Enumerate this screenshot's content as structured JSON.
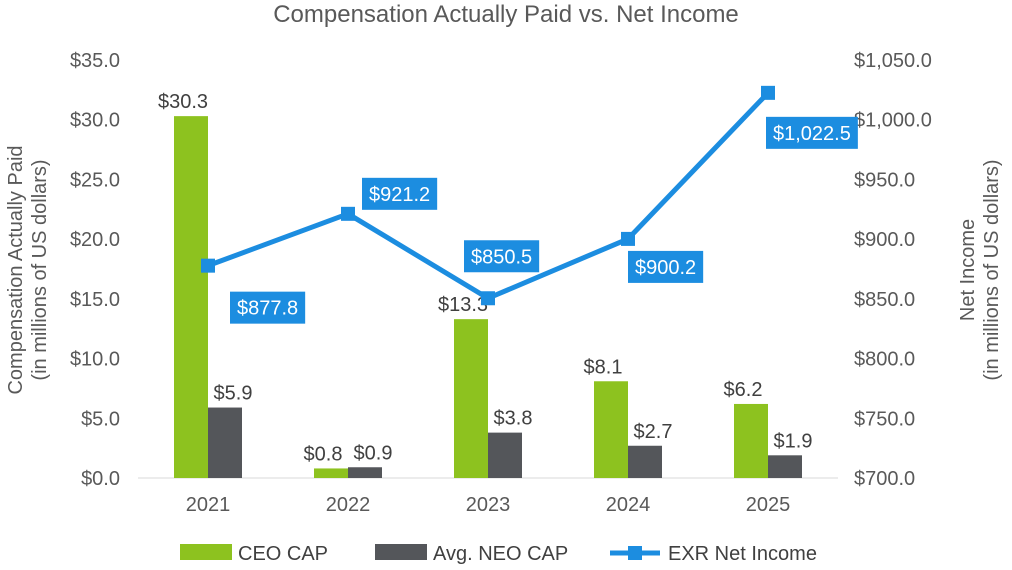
{
  "chart_data": {
    "type": "bar",
    "title": "Compensation Actually Paid vs. Net Income",
    "categories": [
      "2021",
      "2022",
      "2023",
      "2024",
      "2025"
    ],
    "y_left": {
      "label_line1": "Compensation Actually Paid",
      "label_line2": "(in millions of US dollars)",
      "ylim": [
        0,
        35
      ],
      "ticks": [
        0,
        5,
        10,
        15,
        20,
        25,
        30,
        35
      ],
      "tick_labels": [
        "$0.0",
        "$5.0",
        "$10.0",
        "$15.0",
        "$20.0",
        "$25.0",
        "$30.0",
        "$35.0"
      ]
    },
    "y_right": {
      "label_line1": "Net Income",
      "label_line2": "(in millions of US dollars)",
      "ylim": [
        700,
        1050
      ],
      "ticks": [
        700,
        750,
        800,
        850,
        900,
        950,
        1000,
        1050
      ],
      "tick_labels": [
        "$700.0",
        "$750.0",
        "$800.0",
        "$850.0",
        "$900.0",
        "$950.0",
        "$1,000.0",
        "$1,050.0"
      ]
    },
    "series": [
      {
        "name": "CEO CAP",
        "type": "bar",
        "axis": "left",
        "color": "#8DC21F",
        "values": [
          30.3,
          0.8,
          13.3,
          8.1,
          6.2
        ],
        "labels": [
          "$30.3",
          "$0.8",
          "$13.3",
          "$8.1",
          "$6.2"
        ]
      },
      {
        "name": "Avg. NEO CAP",
        "type": "bar",
        "axis": "left",
        "color": "#54565A",
        "values": [
          5.9,
          0.9,
          3.8,
          2.7,
          1.9
        ],
        "labels": [
          "$5.9",
          "$0.9",
          "$3.8",
          "$2.7",
          "$1.9"
        ]
      },
      {
        "name": "EXR Net Income",
        "type": "line",
        "axis": "right",
        "color": "#1C8DE0",
        "values": [
          877.8,
          921.2,
          850.5,
          900.2,
          1022.5
        ],
        "labels": [
          "$877.8",
          "$921.2",
          "$850.5",
          "$900.2",
          "$1,022.5"
        ]
      }
    ],
    "legend": [
      "CEO CAP",
      "Avg. NEO CAP",
      "EXR Net Income"
    ],
    "legend_position": "bottom",
    "grid": false
  }
}
